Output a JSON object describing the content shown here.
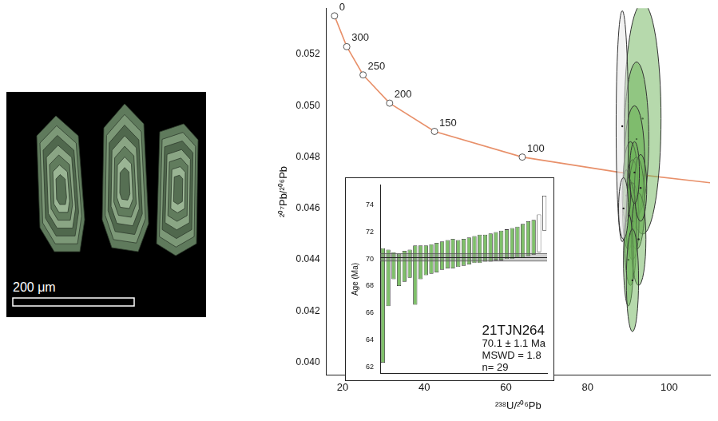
{
  "chart_data": [
    {
      "type": "scatter",
      "x_label": "²³⁸U/²⁰⁶Pb",
      "y_label": "²⁰⁷Pb/²⁰⁶Pb",
      "xlim": [
        16,
        110
      ],
      "xticks": [
        20,
        40,
        60,
        80,
        100
      ],
      "ylim": [
        0.0395,
        0.0538
      ],
      "yticks": [
        {
          "value": 0.04,
          "label": "0.040"
        },
        {
          "value": 0.042,
          "label": "0.042"
        },
        {
          "value": 0.044,
          "label": "0.044"
        },
        {
          "value": 0.046,
          "label": "0.046"
        },
        {
          "value": 0.048,
          "label": "0.048"
        },
        {
          "value": 0.05,
          "label": "0.050"
        },
        {
          "value": 0.052,
          "label": "0.052"
        }
      ],
      "grid": false,
      "series": [
        {
          "type": "line",
          "line_style": "solid",
          "color": "#e8906a",
          "x": [
            18,
            21,
            25,
            31.5,
            42.5,
            64,
            88,
            110
          ],
          "values": [
            0.0535,
            0.0523,
            0.0512,
            0.0501,
            0.049,
            0.048,
            0.0474,
            0.047
          ]
        },
        {
          "type": "scatter",
          "marker": "circle",
          "color": "#555555",
          "x": [
            18,
            21,
            25,
            31.5,
            42.5,
            64
          ],
          "values": [
            0.0535,
            0.0523,
            0.0512,
            0.0501,
            0.049,
            0.048
          ],
          "point_labels": [
            "0",
            "300",
            "250",
            "200",
            "150",
            "100"
          ]
        },
        {
          "type": "ellipse",
          "color": "#6db35a",
          "x": [
            93.5,
            92,
            91.5,
            90.5,
            91,
            92,
            90,
            91,
            90.5,
            92.5,
            90,
            91,
            93,
            89.5,
            91.5
          ],
          "values": [
            0.0495,
            0.0487,
            0.0478,
            0.047,
            0.0465,
            0.0462,
            0.0458,
            0.0455,
            0.045,
            0.0448,
            0.044,
            0.0432,
            0.0468,
            0.0465,
            0.0474
          ],
          "x_err": [
            4.5,
            3,
            2.5,
            1.8,
            1.5,
            2,
            1.4,
            1.6,
            1.5,
            1.8,
            1.2,
            1.5,
            1.5,
            1.0,
            1.2
          ],
          "y_err": [
            0.0045,
            0.003,
            0.0022,
            0.0016,
            0.0014,
            0.0018,
            0.0014,
            0.0015,
            0.002,
            0.0018,
            0.0018,
            0.002,
            0.0013,
            0.001,
            0.0012
          ]
        },
        {
          "type": "ellipse",
          "color": "#e6e6e6",
          "x": [
            88.5,
            88.8
          ],
          "values": [
            0.0492,
            0.046
          ],
          "x_err": [
            1.5,
            1.2
          ],
          "y_err": [
            0.0045,
            0.0012
          ]
        }
      ]
    },
    {
      "type": "bar",
      "title": "21TJN264",
      "annotations": [
        "70.1 ± 1.1 Ma",
        "MSWD = 1.8",
        "n= 29"
      ],
      "y_label": "Age (Ma)",
      "ylim": [
        61.5,
        75.5
      ],
      "yticks": [
        62,
        64,
        66,
        68,
        70,
        72,
        74
      ],
      "tick_labels": "y",
      "grid": false,
      "ranges": [
        [
          62.3,
          70.8
        ],
        [
          66.5,
          70.7
        ],
        [
          68.5,
          70.5
        ],
        [
          68.0,
          70.4
        ],
        [
          68.3,
          70.6
        ],
        [
          68.6,
          70.7
        ],
        [
          66.6,
          71.0
        ],
        [
          68.5,
          71.0
        ],
        [
          68.8,
          71.0
        ],
        [
          68.9,
          71.1
        ],
        [
          69.0,
          71.2
        ],
        [
          69.2,
          71.3
        ],
        [
          69.3,
          71.4
        ],
        [
          69.3,
          71.5
        ],
        [
          69.4,
          71.4
        ],
        [
          69.5,
          71.5
        ],
        [
          69.6,
          71.6
        ],
        [
          69.7,
          71.7
        ],
        [
          69.7,
          71.8
        ],
        [
          69.8,
          71.8
        ],
        [
          69.8,
          71.9
        ],
        [
          69.9,
          72.0
        ],
        [
          69.9,
          72.1
        ],
        [
          70.0,
          72.2
        ],
        [
          70.0,
          72.3
        ],
        [
          70.1,
          72.4
        ],
        [
          70.1,
          72.6
        ],
        [
          70.2,
          72.8
        ],
        [
          70.3,
          72.9
        ],
        [
          70.5,
          73.3
        ],
        [
          72.1,
          74.7
        ]
      ],
      "colors": [
        "#7fc06a",
        "#7fc06a",
        "#7fc06a",
        "#7fc06a",
        "#7fc06a",
        "#7fc06a",
        "#7fc06a",
        "#7fc06a",
        "#7fc06a",
        "#7fc06a",
        "#7fc06a",
        "#7fc06a",
        "#7fc06a",
        "#7fc06a",
        "#7fc06a",
        "#7fc06a",
        "#7fc06a",
        "#7fc06a",
        "#7fc06a",
        "#7fc06a",
        "#7fc06a",
        "#7fc06a",
        "#7fc06a",
        "#7fc06a",
        "#7fc06a",
        "#7fc06a",
        "#7fc06a",
        "#7fc06a",
        "#7fc06a",
        "#ffffff",
        "#ffffff"
      ],
      "mean": 70.1,
      "mean_band": [
        69.85,
        70.4
      ]
    }
  ],
  "image": {
    "scale_bar": "200 μm"
  }
}
